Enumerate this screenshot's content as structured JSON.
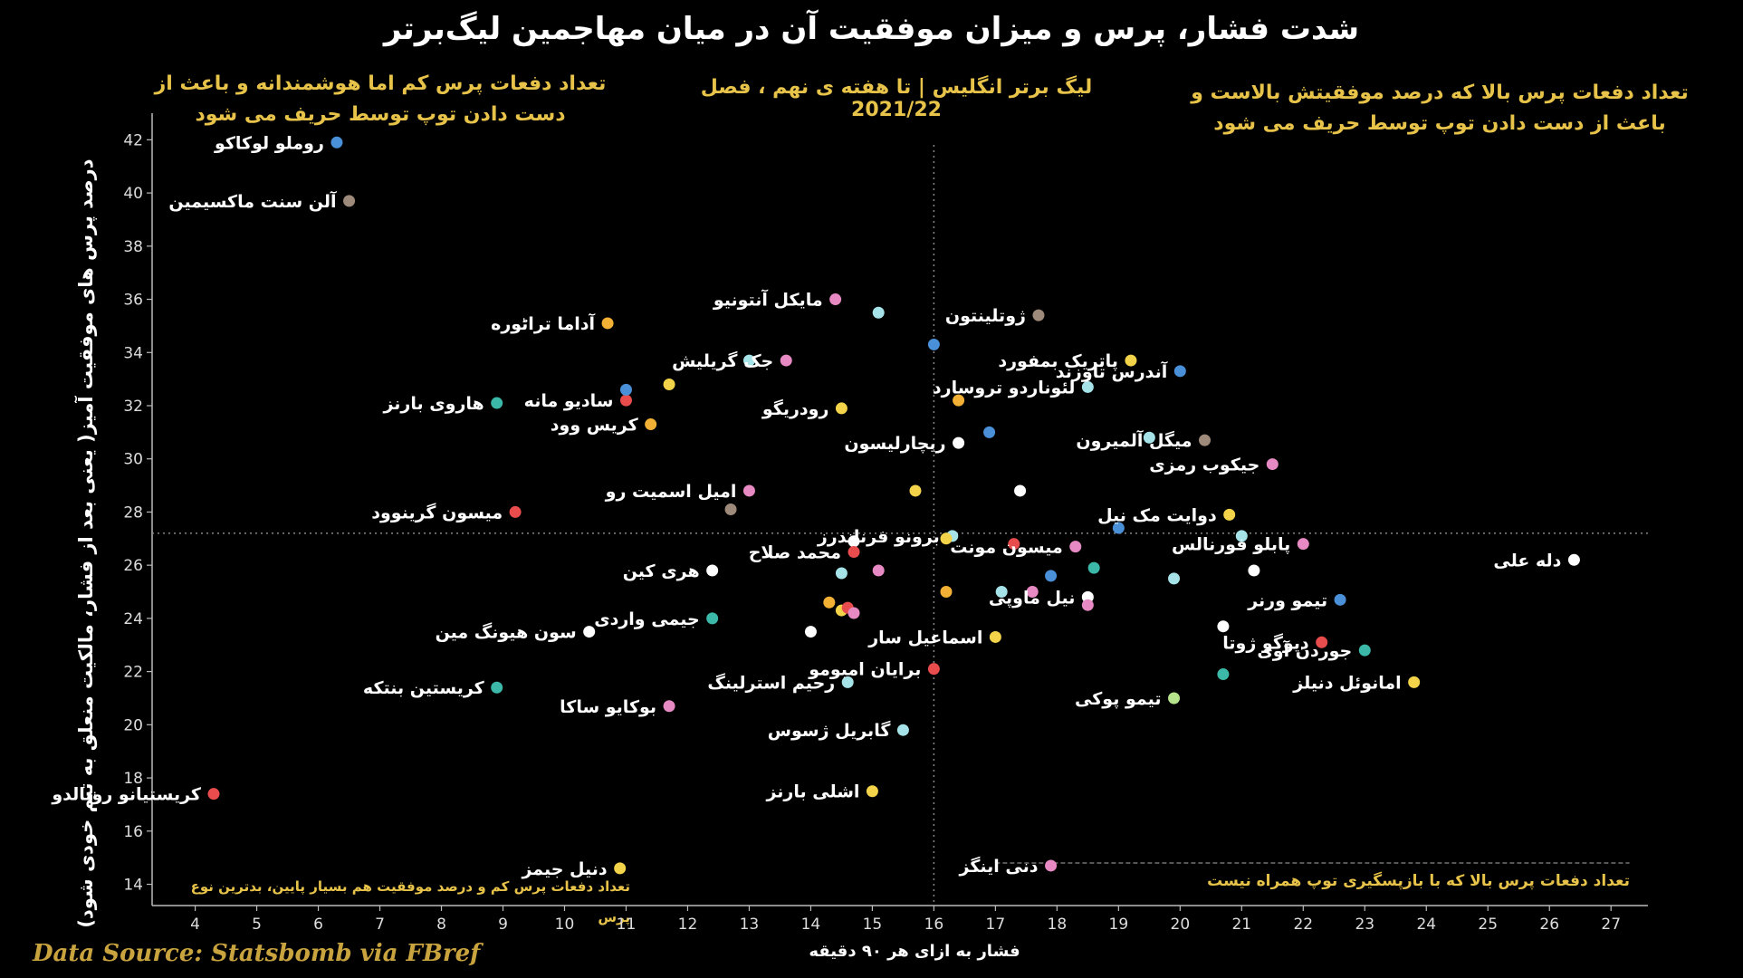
{
  "title": "شدت فشار، پرس و میزان موفقیت آن در میان مهاجمین لیگ‌برتر",
  "subtitle": "لیگ برتر انگلیس | تا هفته ی نهم ، فصل 2021/22",
  "quadrants": {
    "top_left": "تعداد دفعات پرس کم اما هوشمندانه و باعث از دست دادن توپ توسط حریف می شود",
    "top_right": "تعداد دفعات پرس بالا که درصد موفقیتش بالاست و باعث از دست دادن توپ توسط حریف می شود",
    "bottom_left": "تعداد دفعات پرس کم و درصد موفقیت هم بسیار پایین، بدترین نوع پرس",
    "bottom_right": "تعداد دفعات پرس بالا که با بازپسگیری توپ همراه نیست"
  },
  "source": "Data Source: Statsbomb via FBref",
  "chart_data": {
    "type": "scatter",
    "xlabel": "فشار به ازای هر ۹۰ دقیقه",
    "ylabel": "درصد پرس های موفقیت آمیز( یعنی بعد از فشار، مالکیت منعلق به تیم خودی شود)",
    "xlim": [
      3.3,
      27.6
    ],
    "ylim": [
      13.2,
      43.0
    ],
    "xticks": [
      4,
      5,
      6,
      7,
      8,
      9,
      10,
      11,
      12,
      13,
      14,
      15,
      16,
      17,
      18,
      19,
      20,
      21,
      22,
      23,
      24,
      25,
      26,
      27
    ],
    "yticks": [
      14,
      16,
      18,
      20,
      22,
      24,
      26,
      28,
      30,
      32,
      34,
      36,
      38,
      40,
      42
    ],
    "reference_lines": {
      "x": 16,
      "y": 27.2
    },
    "points": [
      {
        "x": 6.3,
        "y": 41.9,
        "label": "روملو لوکاکو",
        "color": "#4a90d9"
      },
      {
        "x": 6.5,
        "y": 39.7,
        "label": "آلن سنت ماکسیمین",
        "color": "#9e8a7a"
      },
      {
        "x": 10.7,
        "y": 35.1,
        "label": "آداما تراٹوره",
        "color": "#f2b134"
      },
      {
        "x": 14.4,
        "y": 36.0,
        "label": "مایکل آنتونیو",
        "color": "#e78ac3"
      },
      {
        "x": 15.1,
        "y": 35.5,
        "label": "",
        "color": "#a6e3e9"
      },
      {
        "x": 16.0,
        "y": 34.3,
        "label": "",
        "color": "#4a90d9"
      },
      {
        "x": 17.7,
        "y": 35.4,
        "label": "ژوتلینتون",
        "color": "#9e8a7a"
      },
      {
        "x": 19.2,
        "y": 33.7,
        "label": "پاتریک بمفورد",
        "color": "#f2d34a"
      },
      {
        "x": 20.0,
        "y": 33.3,
        "label": "آندرس تاوزند",
        "color": "#4a90d9"
      },
      {
        "x": 8.9,
        "y": 32.1,
        "label": "هاروی بارنز",
        "color": "#3bb8a8"
      },
      {
        "x": 11.0,
        "y": 32.2,
        "label": "سادیو مانه",
        "color": "#e84c4c"
      },
      {
        "x": 11.0,
        "y": 32.6,
        "label": "",
        "color": "#4a90d9"
      },
      {
        "x": 11.7,
        "y": 32.8,
        "label": "",
        "color": "#f2d34a"
      },
      {
        "x": 13.0,
        "y": 33.7,
        "label": "",
        "color": "#a6e3e9"
      },
      {
        "x": 13.6,
        "y": 33.7,
        "label": "جک گریلیش",
        "color": "#e78ac3"
      },
      {
        "x": 11.4,
        "y": 31.3,
        "label": "کریس وود",
        "color": "#f2b134"
      },
      {
        "x": 14.5,
        "y": 31.9,
        "label": "رودریگو",
        "color": "#f2d34a"
      },
      {
        "x": 16.4,
        "y": 32.2,
        "label": "",
        "color": "#f2b134"
      },
      {
        "x": 16.9,
        "y": 31.0,
        "label": "",
        "color": "#4a90d9"
      },
      {
        "x": 16.4,
        "y": 30.6,
        "label": "ریچارلیسون",
        "color": "#ffffff"
      },
      {
        "x": 18.5,
        "y": 32.7,
        "label": "لئوناردو تروسارد",
        "color": "#a6e3e9"
      },
      {
        "x": 19.5,
        "y": 30.8,
        "label": "",
        "color": "#a6e3e9"
      },
      {
        "x": 20.4,
        "y": 30.7,
        "label": "میگل آلمیرون",
        "color": "#9e8a7a"
      },
      {
        "x": 21.5,
        "y": 29.8,
        "label": "جیکوب رمزی",
        "color": "#e78ac3"
      },
      {
        "x": 13.0,
        "y": 28.8,
        "label": "امیل اسمیت رو",
        "color": "#e78ac3"
      },
      {
        "x": 15.7,
        "y": 28.8,
        "label": "",
        "color": "#f2d34a"
      },
      {
        "x": 17.4,
        "y": 28.8,
        "label": "",
        "color": "#ffffff"
      },
      {
        "x": 9.2,
        "y": 28.0,
        "label": "میسون گرینوود",
        "color": "#e84c4c"
      },
      {
        "x": 12.7,
        "y": 28.1,
        "label": "",
        "color": "#9e8a7a"
      },
      {
        "x": 20.8,
        "y": 27.9,
        "label": "دوایت مک نیل",
        "color": "#f2d34a"
      },
      {
        "x": 19.0,
        "y": 27.4,
        "label": "",
        "color": "#4a90d9"
      },
      {
        "x": 21.0,
        "y": 27.1,
        "label": "",
        "color": "#a6e3e9"
      },
      {
        "x": 16.3,
        "y": 27.1,
        "label": "برونو فرناندرز",
        "color": "#a6e3e9"
      },
      {
        "x": 16.2,
        "y": 27.0,
        "label": "",
        "color": "#f2d34a"
      },
      {
        "x": 14.7,
        "y": 26.9,
        "label": "",
        "color": "#ffffff"
      },
      {
        "x": 14.7,
        "y": 26.5,
        "label": "محمد صلاح",
        "color": "#e84c4c"
      },
      {
        "x": 17.3,
        "y": 26.8,
        "label": "",
        "color": "#e84c4c"
      },
      {
        "x": 18.3,
        "y": 26.7,
        "label": "میسون مونت",
        "color": "#e78ac3"
      },
      {
        "x": 22.0,
        "y": 26.8,
        "label": "پابلو فورنالس",
        "color": "#e78ac3"
      },
      {
        "x": 26.4,
        "y": 26.2,
        "label": "دله علی",
        "color": "#ffffff"
      },
      {
        "x": 12.4,
        "y": 25.8,
        "label": "هری کین",
        "color": "#ffffff"
      },
      {
        "x": 14.5,
        "y": 25.7,
        "label": "",
        "color": "#a6e3e9"
      },
      {
        "x": 15.1,
        "y": 25.8,
        "label": "",
        "color": "#e78ac3"
      },
      {
        "x": 18.6,
        "y": 25.9,
        "label": "",
        "color": "#3bb8a8"
      },
      {
        "x": 17.9,
        "y": 25.6,
        "label": "",
        "color": "#4a90d9"
      },
      {
        "x": 19.9,
        "y": 25.5,
        "label": "",
        "color": "#a6e3e9"
      },
      {
        "x": 21.2,
        "y": 25.8,
        "label": "",
        "color": "#ffffff"
      },
      {
        "x": 16.2,
        "y": 25.0,
        "label": "",
        "color": "#f2b134"
      },
      {
        "x": 17.1,
        "y": 25.0,
        "label": "",
        "color": "#a6e3e9"
      },
      {
        "x": 17.6,
        "y": 25.0,
        "label": "",
        "color": "#e78ac3"
      },
      {
        "x": 18.5,
        "y": 24.8,
        "label": "نیل ماوپی",
        "color": "#ffffff"
      },
      {
        "x": 18.5,
        "y": 24.5,
        "label": "",
        "color": "#e78ac3"
      },
      {
        "x": 22.6,
        "y": 24.7,
        "label": "تیمو ورنر",
        "color": "#4a90d9"
      },
      {
        "x": 14.3,
        "y": 24.6,
        "label": "",
        "color": "#f2b134"
      },
      {
        "x": 14.5,
        "y": 24.3,
        "label": "",
        "color": "#f2d34a"
      },
      {
        "x": 14.6,
        "y": 24.4,
        "label": "",
        "color": "#e84c4c"
      },
      {
        "x": 14.7,
        "y": 24.2,
        "label": "",
        "color": "#e78ac3"
      },
      {
        "x": 12.4,
        "y": 24.0,
        "label": "جیمی واردی",
        "color": "#3bb8a8"
      },
      {
        "x": 10.4,
        "y": 23.5,
        "label": "سون هیونگ مین",
        "color": "#ffffff"
      },
      {
        "x": 14.0,
        "y": 23.5,
        "label": "",
        "color": "#ffffff"
      },
      {
        "x": 20.7,
        "y": 23.7,
        "label": "",
        "color": "#ffffff"
      },
      {
        "x": 17.0,
        "y": 23.3,
        "label": "اسماعیل سار",
        "color": "#f2d34a"
      },
      {
        "x": 22.3,
        "y": 23.1,
        "label": "دیوگو ژوتا",
        "color": "#e84c4c"
      },
      {
        "x": 23.0,
        "y": 22.8,
        "label": "جوردن آوی",
        "color": "#3bb8a8"
      },
      {
        "x": 14.6,
        "y": 21.6,
        "label": "رحیم استرلینگ",
        "color": "#a6e3e9"
      },
      {
        "x": 16.0,
        "y": 22.1,
        "label": "برایان امبومو",
        "color": "#e84c4c"
      },
      {
        "x": 20.7,
        "y": 21.9,
        "label": "",
        "color": "#3bb8a8"
      },
      {
        "x": 23.8,
        "y": 21.6,
        "label": "امانوئل دنیلز",
        "color": "#f2d34a"
      },
      {
        "x": 8.9,
        "y": 21.4,
        "label": "کریستین بنتکه",
        "color": "#3bb8a8"
      },
      {
        "x": 11.7,
        "y": 20.7,
        "label": "بوکایو ساکا",
        "color": "#e78ac3"
      },
      {
        "x": 19.9,
        "y": 21.0,
        "label": "تیمو پوکی",
        "color": "#b5e48c"
      },
      {
        "x": 15.5,
        "y": 19.8,
        "label": "گابریل ژسوس",
        "color": "#a6e3e9"
      },
      {
        "x": 4.3,
        "y": 17.4,
        "label": "کریستیانو رونالدو",
        "color": "#e84c4c"
      },
      {
        "x": 15.0,
        "y": 17.5,
        "label": "اشلی بارنز",
        "color": "#f2d34a"
      },
      {
        "x": 17.9,
        "y": 14.7,
        "label": "دنی اینگز",
        "color": "#e78ac3"
      },
      {
        "x": 10.9,
        "y": 14.6,
        "label": "دنیل جیمز",
        "color": "#f2d34a"
      }
    ]
  }
}
